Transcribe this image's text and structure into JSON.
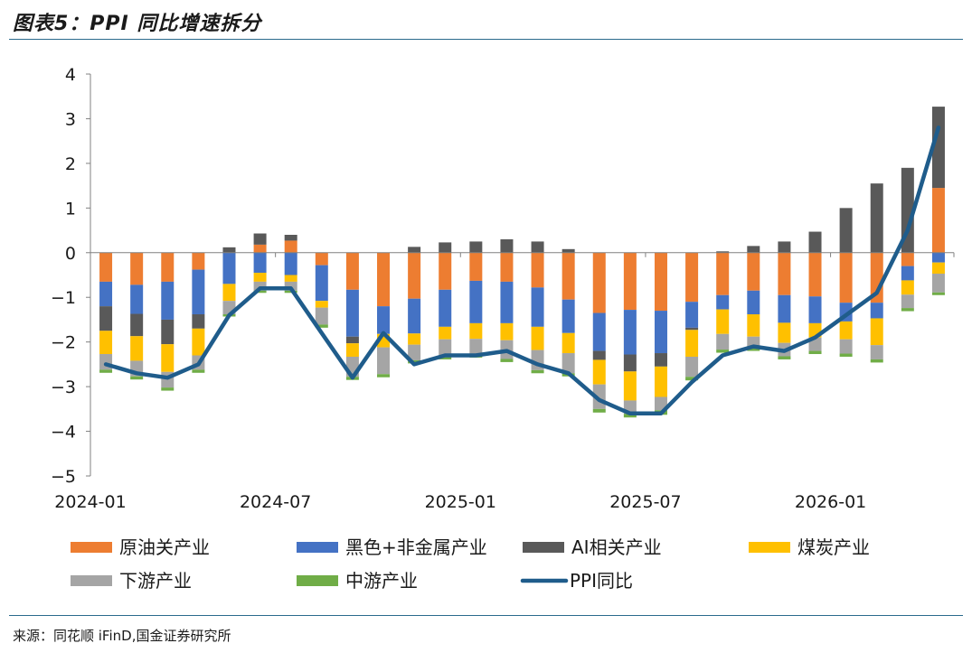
{
  "title": "图表5：PPI 同比增速拆分",
  "source": "来源：同花顺 iFinD,国金证券研究所",
  "chart_data": {
    "type": "bar",
    "stacked": true,
    "ylim": [
      -5,
      4
    ],
    "yticks": [
      "4",
      "3",
      "2",
      "1",
      "0",
      "−1",
      "−2",
      "−3",
      "−4",
      "−5"
    ],
    "xtick_labels": [
      {
        "index": 0,
        "label": "2024-01"
      },
      {
        "index": 6,
        "label": "2024-07"
      },
      {
        "index": 12,
        "label": "2025-01"
      },
      {
        "index": 18,
        "label": "2025-07"
      },
      {
        "index": 24,
        "label": "2026-01"
      }
    ],
    "x": [
      "2024-01",
      "2024-02",
      "2024-03",
      "2024-04",
      "2024-05",
      "2024-06",
      "2024-07",
      "2024-08",
      "2024-09",
      "2024-10",
      "2024-11",
      "2024-12",
      "2025-01",
      "2025-02",
      "2025-03",
      "2025-04",
      "2025-05",
      "2025-06",
      "2025-07",
      "2025-08",
      "2025-09",
      "2025-10",
      "2025-11",
      "2025-12",
      "2026-01",
      "2026-02",
      "2026-03",
      "2026-04"
    ],
    "series": [
      {
        "name": "原油关产业",
        "color": "#ed7d31",
        "kind": "bar",
        "values": [
          -0.65,
          -0.72,
          -0.65,
          -0.38,
          0,
          0.18,
          0.27,
          -0.28,
          -0.83,
          -1.2,
          -1.03,
          -0.83,
          -0.63,
          -0.65,
          -0.78,
          -1.05,
          -1.35,
          -1.28,
          -1.3,
          -1.1,
          -0.95,
          -0.85,
          -0.95,
          -0.98,
          -1.12,
          -1.12,
          -0.3,
          1.45
        ]
      },
      {
        "name": "黑色+非金属产业",
        "color": "#4472c4",
        "kind": "bar",
        "values": [
          -0.55,
          -0.65,
          -0.85,
          -1.0,
          -0.7,
          -0.45,
          -0.5,
          -0.8,
          -1.05,
          -0.62,
          -0.78,
          -0.83,
          -0.95,
          -0.93,
          -0.88,
          -0.75,
          -0.85,
          -1.0,
          -0.95,
          -0.58,
          -0.32,
          -0.53,
          -0.62,
          -0.6,
          -0.42,
          -0.35,
          -0.32,
          -0.22
        ]
      },
      {
        "name": "AI相关产业",
        "color": "#595959",
        "kind": "bar",
        "values": [
          -0.55,
          -0.5,
          -0.55,
          -0.32,
          0.12,
          0.25,
          0.13,
          0,
          -0.15,
          0,
          0.13,
          0.23,
          0.25,
          0.3,
          0.25,
          0.08,
          -0.2,
          -0.38,
          -0.3,
          -0.05,
          0.03,
          0.15,
          0.25,
          0.47,
          1.0,
          1.55,
          1.9,
          1.82
        ]
      },
      {
        "name": "煤炭产业",
        "color": "#ffc000",
        "kind": "bar",
        "values": [
          -0.52,
          -0.55,
          -0.62,
          -0.6,
          -0.38,
          -0.2,
          -0.15,
          -0.15,
          -0.3,
          -0.3,
          -0.25,
          -0.28,
          -0.35,
          -0.38,
          -0.52,
          -0.45,
          -0.55,
          -0.65,
          -0.68,
          -0.6,
          -0.55,
          -0.5,
          -0.45,
          -0.32,
          -0.4,
          -0.6,
          -0.32,
          -0.25
        ]
      },
      {
        "name": "下游产业",
        "color": "#a5a5a5",
        "kind": "bar",
        "values": [
          -0.35,
          -0.35,
          -0.35,
          -0.32,
          -0.3,
          -0.2,
          -0.2,
          -0.38,
          -0.45,
          -0.6,
          -0.35,
          -0.38,
          -0.35,
          -0.42,
          -0.45,
          -0.45,
          -0.55,
          -0.3,
          -0.3,
          -0.45,
          -0.35,
          -0.25,
          -0.3,
          -0.3,
          -0.32,
          -0.32,
          -0.3,
          -0.42
        ]
      },
      {
        "name": "中游产业",
        "color": "#70ad47",
        "kind": "bar",
        "values": [
          -0.07,
          -0.07,
          -0.07,
          -0.07,
          -0.05,
          -0.05,
          -0.05,
          -0.07,
          -0.07,
          -0.07,
          -0.07,
          -0.07,
          -0.07,
          -0.07,
          -0.07,
          -0.07,
          -0.08,
          -0.08,
          -0.1,
          -0.08,
          -0.07,
          -0.07,
          -0.07,
          -0.07,
          -0.07,
          -0.07,
          -0.07,
          -0.06
        ]
      },
      {
        "name": "PPI同比",
        "color": "#1f5c8b",
        "kind": "line",
        "values": [
          -2.5,
          -2.7,
          -2.8,
          -2.5,
          -1.4,
          -0.8,
          -0.8,
          -1.8,
          -2.8,
          -1.8,
          -2.5,
          -2.3,
          -2.3,
          -2.2,
          -2.5,
          -2.7,
          -3.3,
          -3.6,
          -3.6,
          -2.9,
          -2.3,
          -2.1,
          -2.2,
          -1.9,
          -1.4,
          -0.9,
          0.5,
          2.8
        ]
      }
    ],
    "legend": [
      "原油关产业",
      "黑色+非金属产业",
      "AI相关产业",
      "煤炭产业",
      "下游产业",
      "中游产业",
      "PPI同比"
    ],
    "legend_placement": "bottom",
    "grid": false
  }
}
